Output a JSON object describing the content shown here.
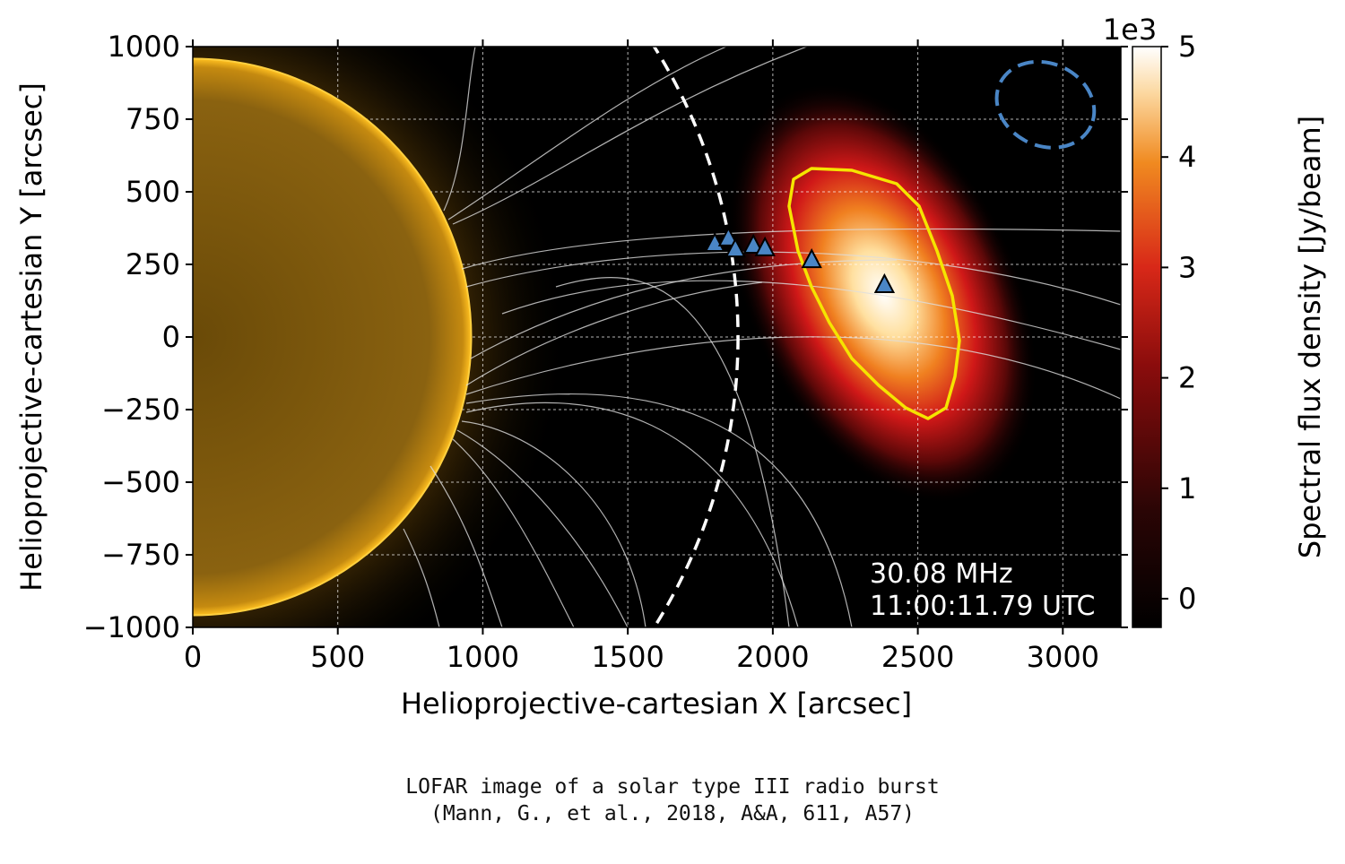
{
  "chart_data": {
    "type": "heatmap",
    "xlabel": "Helioprojective-cartesian X [arcsec]",
    "ylabel": "Helioprojective-cartesian Y [arcsec]",
    "xlim": [
      0,
      3200
    ],
    "ylim": [
      -1000,
      1000
    ],
    "xticks": [
      "0",
      "500",
      "1000",
      "1500",
      "2000",
      "2500",
      "3000"
    ],
    "yticks": [
      "1000",
      "750",
      "500",
      "250",
      "0",
      "−250",
      "−500",
      "−750",
      "−1000"
    ],
    "grid": true,
    "colorbar": {
      "label": "Spectral flux density [Jy/beam]",
      "multiplier": "1e3",
      "ticks": [
        "0",
        "1",
        "2",
        "3",
        "4",
        "5"
      ],
      "range": [
        -0.26,
        5.0
      ],
      "colormap": "hot"
    },
    "annotations": {
      "frequency": "30.08 MHz",
      "time": "11:00:11.79 UTC"
    },
    "sun_radius_arcsec": 960,
    "dashed_circle_radius_arcsec": 1880,
    "radio_source_peak": {
      "x": 2380,
      "y": 150
    },
    "markers": [
      {
        "x": 1800,
        "y": 321
      },
      {
        "x": 1847,
        "y": 340
      },
      {
        "x": 1871,
        "y": 302
      },
      {
        "x": 1933,
        "y": 315
      },
      {
        "x": 1973,
        "y": 306
      },
      {
        "x": 2134,
        "y": 265
      },
      {
        "x": 2385,
        "y": 179
      }
    ],
    "beam": {
      "x": 2940,
      "y": 800
    },
    "colors": {
      "marker": "#4a86c6",
      "contour": "#f5e400",
      "beam": "#4a86c6",
      "sun": "#e0a010"
    }
  },
  "caption": {
    "line1": "LOFAR image of a solar type III radio burst",
    "line2": "(Mann, G., et al., 2018, A&A, 611, A57)"
  }
}
